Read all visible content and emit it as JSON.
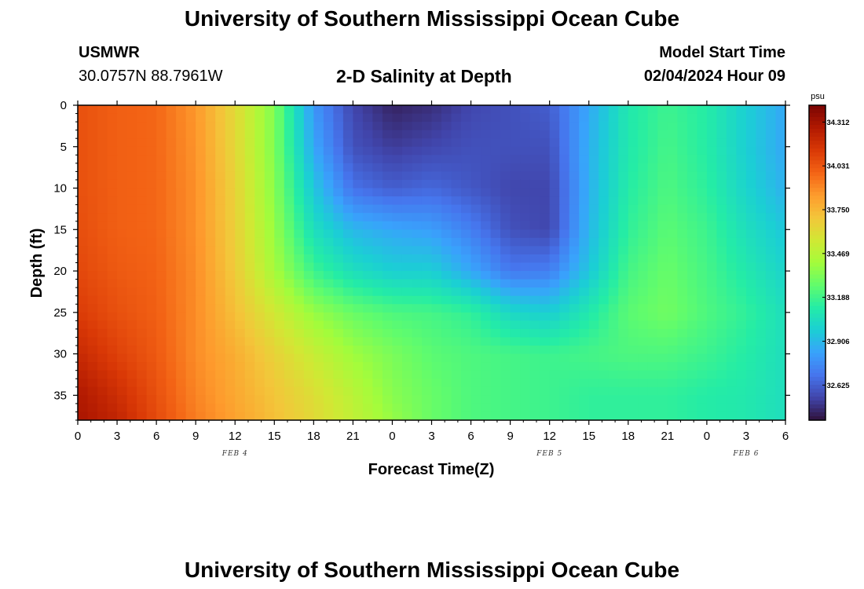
{
  "header": {
    "title": "University of Southern Mississippi Ocean Cube",
    "station_id": "USMWR",
    "station_coords": "30.0757N  88.7961W",
    "plot_title": "2-D Salinity at Depth",
    "model_start_label": "Model Start Time",
    "model_start_value": "02/04/2024 Hour 09"
  },
  "footer": {
    "title": "University of Southern Mississippi Ocean Cube"
  },
  "chart_data": {
    "type": "heatmap",
    "title": "2-D Salinity at Depth",
    "xlabel": "Forecast Time(Z)",
    "ylabel": "Depth (ft)",
    "x_tick_labels": [
      "0",
      "3",
      "6",
      "9",
      "12",
      "15",
      "18",
      "21",
      "0",
      "3",
      "6",
      "9",
      "12",
      "15",
      "18",
      "21",
      "0",
      "3",
      "6"
    ],
    "x_hours": [
      0,
      3,
      6,
      9,
      12,
      15,
      18,
      21,
      24,
      27,
      30,
      33,
      36,
      39,
      42,
      45,
      48,
      51,
      54
    ],
    "xlim": [
      0,
      54
    ],
    "day_labels": [
      {
        "text": "FEB 4",
        "hour": 12
      },
      {
        "text": "FEB 5",
        "hour": 36
      },
      {
        "text": "FEB 6",
        "hour": 51
      }
    ],
    "y_ticks": [
      0,
      5,
      10,
      15,
      20,
      25,
      30,
      35
    ],
    "ylim": [
      0,
      38
    ],
    "y_inverted": true,
    "colorbar": {
      "unit": "psu",
      "ticks": [
        "34.312",
        "34.031",
        "33.750",
        "33.469",
        "33.188",
        "32.906",
        "32.625"
      ],
      "tick_values": [
        34.312,
        34.031,
        33.75,
        33.469,
        33.188,
        32.906,
        32.625
      ],
      "range": [
        32.4,
        34.42
      ],
      "colors": [
        "#30123b",
        "#4145ab",
        "#4675ed",
        "#39a2fc",
        "#1bcfd4",
        "#24eca6",
        "#61fc6c",
        "#a4fc3b",
        "#d1e834",
        "#f3c63a",
        "#fe9b2d",
        "#f36315",
        "#d93806",
        "#b11901",
        "#7a0403"
      ]
    },
    "grid": false,
    "legend": "colorbar-right",
    "values": {
      "description_hours": [
        0,
        3,
        6,
        9,
        12,
        15,
        18,
        21,
        24,
        27,
        30,
        33,
        36,
        39,
        42,
        45,
        48,
        51,
        54
      ],
      "depths_ft": [
        0,
        5,
        10,
        15,
        20,
        25,
        30,
        35,
        38
      ],
      "salinity_psu": [
        [
          34.05,
          34.0,
          33.98,
          33.85,
          33.62,
          33.33,
          32.8,
          32.55,
          32.45,
          32.48,
          32.55,
          32.58,
          32.62,
          32.85,
          33.1,
          33.18,
          33.12,
          32.98,
          32.85
        ],
        [
          34.05,
          34.0,
          33.98,
          33.86,
          33.63,
          33.33,
          32.85,
          32.58,
          32.52,
          32.55,
          32.58,
          32.58,
          32.58,
          32.88,
          33.1,
          33.2,
          33.12,
          32.98,
          32.85
        ],
        [
          34.05,
          34.0,
          33.98,
          33.87,
          33.65,
          33.35,
          32.95,
          32.68,
          32.62,
          32.65,
          32.6,
          32.55,
          32.55,
          32.88,
          33.12,
          33.22,
          33.14,
          33.0,
          32.88
        ],
        [
          34.06,
          34.0,
          33.98,
          33.87,
          33.66,
          33.38,
          33.05,
          32.9,
          32.85,
          32.82,
          32.72,
          32.58,
          32.55,
          32.9,
          33.15,
          33.25,
          33.18,
          33.05,
          32.95
        ],
        [
          34.08,
          34.02,
          33.99,
          33.88,
          33.68,
          33.42,
          33.18,
          33.05,
          32.98,
          32.98,
          32.85,
          32.7,
          32.72,
          32.95,
          33.2,
          33.28,
          33.2,
          33.1,
          33.0
        ],
        [
          34.12,
          34.05,
          34.0,
          33.88,
          33.72,
          33.55,
          33.38,
          33.28,
          33.22,
          33.2,
          33.15,
          33.02,
          32.98,
          33.1,
          33.25,
          33.3,
          33.22,
          33.15,
          33.05
        ],
        [
          34.2,
          34.1,
          34.02,
          33.88,
          33.78,
          33.65,
          33.52,
          33.4,
          33.32,
          33.25,
          33.22,
          33.2,
          33.18,
          33.2,
          33.22,
          33.22,
          33.18,
          33.12,
          33.05
        ],
        [
          34.28,
          34.18,
          34.05,
          33.9,
          33.8,
          33.7,
          33.6,
          33.48,
          33.35,
          33.28,
          33.22,
          33.2,
          33.18,
          33.15,
          33.15,
          33.15,
          33.12,
          33.1,
          33.05
        ],
        [
          34.3,
          34.22,
          34.07,
          33.92,
          33.82,
          33.72,
          33.62,
          33.5,
          33.38,
          33.28,
          33.22,
          33.2,
          33.18,
          33.15,
          33.15,
          33.15,
          33.12,
          33.1,
          33.05
        ]
      ]
    }
  }
}
